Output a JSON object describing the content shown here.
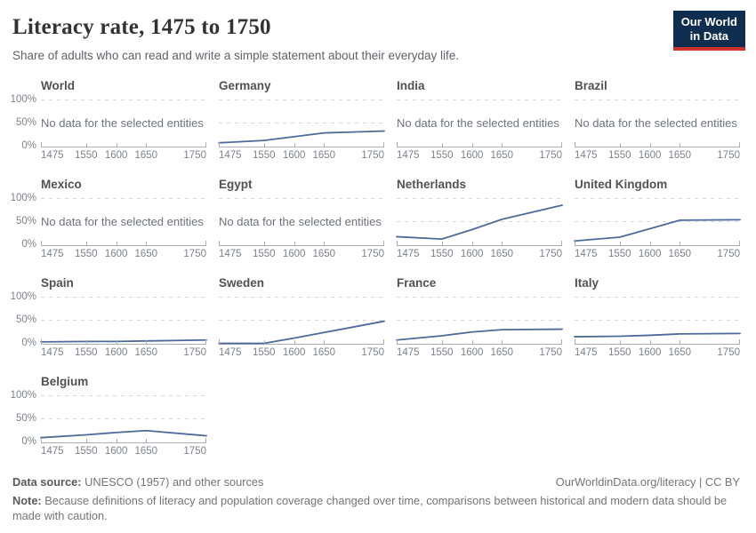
{
  "header": {
    "title": "Literacy rate, 1475 to 1750",
    "subtitle": "Share of adults who can read and write a simple statement about their everyday life.",
    "logo": {
      "line1": "Our World",
      "line2": "in Data"
    }
  },
  "axis": {
    "y_ticks": [
      "100%",
      "50%",
      "0%"
    ],
    "x_ticks": [
      "1475",
      "1550",
      "1600",
      "1650",
      "1750"
    ],
    "x_positions": [
      0,
      27.3,
      45.5,
      63.6,
      100
    ]
  },
  "no_data_message": "No data for the selected entities",
  "chart_data": {
    "type": "line",
    "title": "Literacy rate, 1475 to 1750",
    "unit": "%",
    "x": [
      1475,
      1550,
      1600,
      1650,
      1750
    ],
    "xlim": [
      1475,
      1750
    ],
    "ylim": [
      0,
      100
    ],
    "y_gridlines": [
      0,
      50,
      100
    ],
    "grid": "dashed-horizontal",
    "legend_position": "none",
    "series": [
      {
        "name": "World",
        "values": null
      },
      {
        "name": "Germany",
        "values": [
          8,
          13,
          21,
          29,
          33
        ]
      },
      {
        "name": "India",
        "values": null
      },
      {
        "name": "Brazil",
        "values": null
      },
      {
        "name": "Mexico",
        "values": null
      },
      {
        "name": "Egypt",
        "values": null
      },
      {
        "name": "Netherlands",
        "values": [
          18,
          13,
          33,
          55,
          85
        ]
      },
      {
        "name": "United Kingdom",
        "values": [
          9,
          17,
          35,
          53,
          54
        ]
      },
      {
        "name": "Spain",
        "values": [
          4,
          5,
          5,
          6,
          8
        ]
      },
      {
        "name": "Sweden",
        "values": [
          1,
          1,
          12,
          24,
          48
        ]
      },
      {
        "name": "France",
        "values": [
          8,
          17,
          25,
          30,
          31
        ]
      },
      {
        "name": "Italy",
        "values": [
          15,
          16,
          18,
          21,
          22
        ]
      },
      {
        "name": "Belgium",
        "values": [
          10,
          16,
          21,
          25,
          14
        ]
      }
    ]
  },
  "footer": {
    "datasource_label": "Data source:",
    "datasource_text": " UNESCO (1957) and other sources",
    "link_text": "OurWorldinData.org/literacy | CC BY",
    "note_label": "Note:",
    "note_text": " Because definitions of literacy and population coverage changed over time, comparisons between historical and modern data should be made with caution."
  },
  "colors": {
    "line": "#4c6a9c",
    "grid_dash": "#d7dadd",
    "axis_gray": "#a8aeb4",
    "logo_navy": "#0f2d4f",
    "logo_red": "#d0312d"
  }
}
